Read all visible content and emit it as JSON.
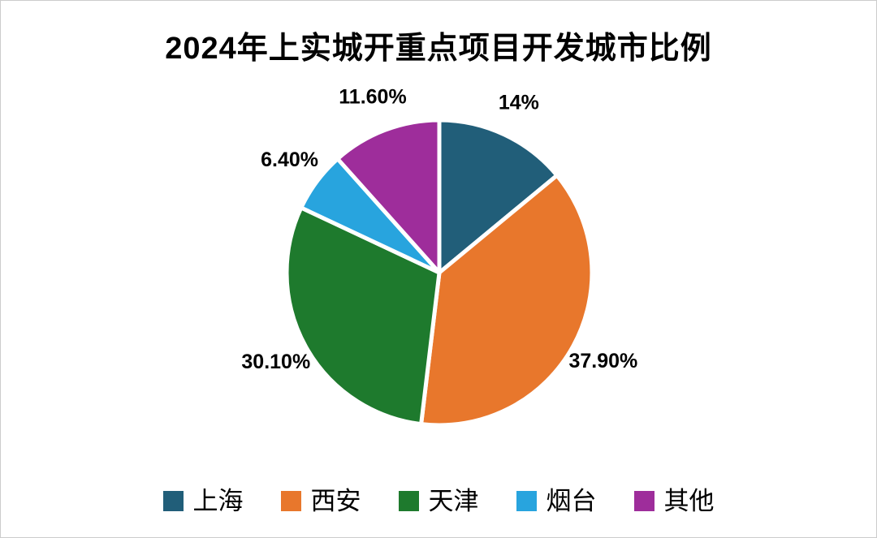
{
  "chart_data": {
    "type": "pie",
    "title": "2024年上实城开重点项目开发城市比例",
    "categories": [
      "上海",
      "西安",
      "天津",
      "烟台",
      "其他"
    ],
    "values": [
      14,
      37.9,
      30.1,
      6.4,
      11.6
    ],
    "value_labels": [
      "14%",
      "37.90%",
      "30.10%",
      "6.40%",
      "11.60%"
    ],
    "colors": [
      "#215E79",
      "#E8772C",
      "#1E7A2D",
      "#28A4DE",
      "#9E2D9B"
    ],
    "start_angle_deg": 0,
    "direction": "clockwise",
    "legend_position": "bottom",
    "slice_border_color": "#FFFFFF",
    "background_color": "#FFFFFF",
    "label_position": "outside"
  }
}
